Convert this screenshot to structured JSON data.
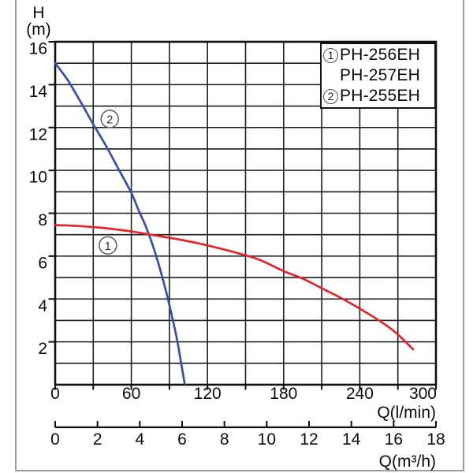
{
  "labels": {
    "y_axis_line1": "H",
    "y_axis_line2": "(m)",
    "x_axis_primary": "Q(l/min)",
    "x_axis_secondary": "Q(m³/h)"
  },
  "legend": {
    "entries": [
      {
        "marker": "1",
        "label": "PH-256EH"
      },
      {
        "marker": "",
        "label": "PH-257EH"
      },
      {
        "marker": "2",
        "label": "PH-255EH"
      }
    ]
  },
  "colors": {
    "curve_blue": "#3a4ea8",
    "curve_red": "#e4232b",
    "grid": "#1d1d1d",
    "border": "#101010",
    "frame": "#9c9c9c",
    "text": "#0c0c0c"
  },
  "chart_data": {
    "type": "line",
    "title": "",
    "grid": true,
    "legend_position": "top-right",
    "y_axis": {
      "label": "H (m)",
      "min": 0,
      "max": 16,
      "grid_step": 1,
      "tick_labels": [
        16,
        14,
        12,
        10,
        8,
        6,
        4,
        2
      ]
    },
    "x_axis_primary": {
      "label": "Q(l/min)",
      "min": 0,
      "max": 300,
      "grid_step": 30,
      "tick_labels": [
        0,
        60,
        120,
        180,
        240,
        300
      ]
    },
    "x_axis_secondary": {
      "label": "Q(m³/h)",
      "min": 0,
      "max": 18,
      "tick_step": 2,
      "tick_labels": [
        0,
        2,
        4,
        6,
        8,
        10,
        12,
        14,
        16,
        18
      ]
    },
    "series": [
      {
        "name": "PH-255EH",
        "legend_marker": "2",
        "color": "#3a4ea8",
        "annotation": {
          "q_lmin": 43,
          "h_m": 12.4,
          "text": "2"
        },
        "points_q_lmin_vs_h_m": [
          [
            0,
            15.0
          ],
          [
            10,
            14.2
          ],
          [
            20,
            13.2
          ],
          [
            30,
            12.15
          ],
          [
            40,
            11.15
          ],
          [
            50,
            10.05
          ],
          [
            60,
            8.95
          ],
          [
            66,
            8.1
          ],
          [
            72,
            7.3
          ],
          [
            78,
            6.3
          ],
          [
            84,
            5.1
          ],
          [
            88,
            4.2
          ],
          [
            92,
            3.2
          ],
          [
            96,
            2.1
          ],
          [
            99,
            1.1
          ],
          [
            102,
            0.05
          ]
        ]
      },
      {
        "name": "PH-256EH / PH-257EH",
        "legend_marker": "1",
        "color": "#e4232b",
        "annotation": {
          "q_lmin": 41.5,
          "h_m": 6.5,
          "text": "1"
        },
        "points_q_lmin_vs_h_m": [
          [
            0,
            7.45
          ],
          [
            20,
            7.4
          ],
          [
            40,
            7.3
          ],
          [
            60,
            7.15
          ],
          [
            80,
            6.95
          ],
          [
            100,
            6.75
          ],
          [
            120,
            6.5
          ],
          [
            140,
            6.2
          ],
          [
            160,
            5.85
          ],
          [
            180,
            5.3
          ],
          [
            195,
            4.95
          ],
          [
            210,
            4.5
          ],
          [
            225,
            4.05
          ],
          [
            240,
            3.55
          ],
          [
            255,
            3.0
          ],
          [
            268,
            2.45
          ],
          [
            282,
            1.65
          ]
        ]
      }
    ]
  }
}
